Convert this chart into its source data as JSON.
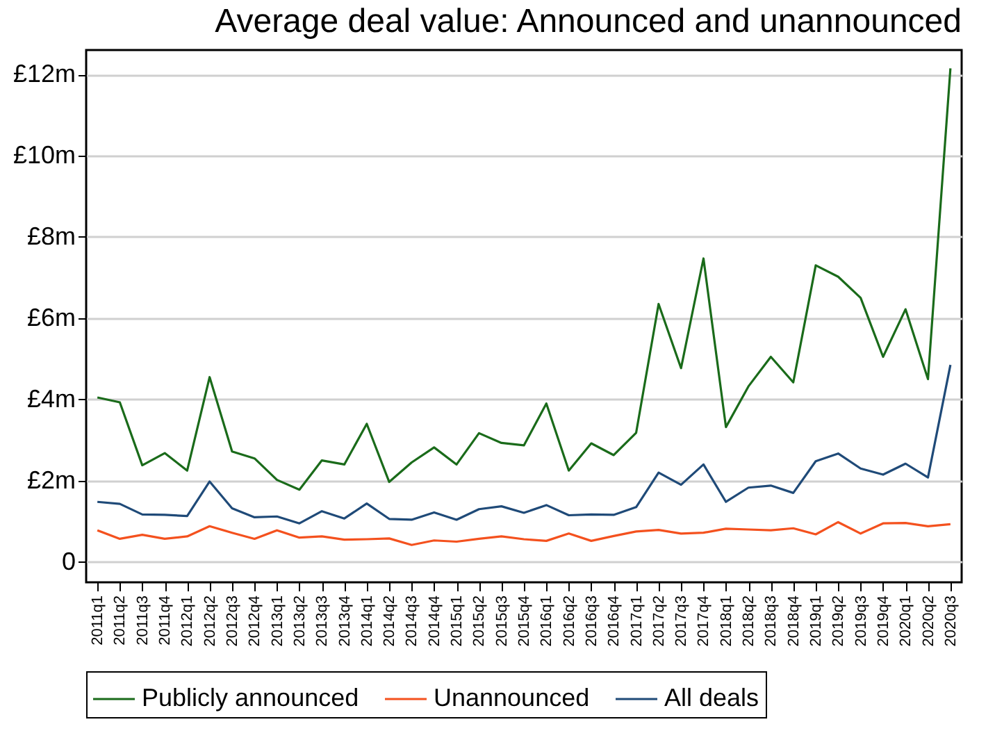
{
  "chart_data": {
    "type": "line",
    "title": "Average deal value: Announced and unannounced",
    "categories": [
      "2011q1",
      "2011q2",
      "2011q3",
      "2011q4",
      "2012q1",
      "2012q2",
      "2012q3",
      "2012q4",
      "2013q1",
      "2013q2",
      "2013q3",
      "2013q4",
      "2014q1",
      "2014q2",
      "2014q3",
      "2014q4",
      "2015q1",
      "2015q2",
      "2015q3",
      "2015q4",
      "2016q1",
      "2016q2",
      "2016q3",
      "2016q4",
      "2017q1",
      "2017q2",
      "2017q3",
      "2017q4",
      "2018q1",
      "2018q2",
      "2018q3",
      "2018q4",
      "2019q1",
      "2019q2",
      "2019q3",
      "2019q4",
      "2020q1",
      "2020q2",
      "2020q3"
    ],
    "series": [
      {
        "name": "Publicly announced",
        "color": "#1a6b1a",
        "values": [
          4.05,
          3.93,
          2.38,
          2.68,
          2.25,
          4.55,
          2.72,
          2.55,
          2.02,
          1.78,
          2.5,
          2.4,
          3.4,
          1.97,
          2.45,
          2.82,
          2.4,
          3.17,
          2.93,
          2.87,
          3.9,
          2.25,
          2.92,
          2.63,
          3.18,
          6.35,
          4.77,
          7.47,
          3.32,
          4.32,
          5.05,
          4.42,
          7.3,
          7.02,
          6.5,
          5.05,
          6.22,
          4.5,
          12.15
        ]
      },
      {
        "name": "Unannounced",
        "color": "#f4511e",
        "values": [
          0.78,
          0.57,
          0.67,
          0.57,
          0.63,
          0.88,
          0.72,
          0.57,
          0.78,
          0.6,
          0.63,
          0.55,
          0.56,
          0.58,
          0.42,
          0.53,
          0.5,
          0.57,
          0.63,
          0.56,
          0.52,
          0.7,
          0.52,
          0.64,
          0.75,
          0.79,
          0.7,
          0.72,
          0.82,
          0.8,
          0.78,
          0.83,
          0.68,
          0.98,
          0.7,
          0.95,
          0.96,
          0.88,
          0.93
        ]
      },
      {
        "name": "All deals",
        "color": "#1f4a78",
        "values": [
          1.48,
          1.43,
          1.17,
          1.16,
          1.13,
          1.98,
          1.32,
          1.1,
          1.12,
          0.95,
          1.25,
          1.07,
          1.44,
          1.06,
          1.04,
          1.22,
          1.04,
          1.3,
          1.37,
          1.21,
          1.4,
          1.15,
          1.17,
          1.16,
          1.35,
          2.2,
          1.9,
          2.4,
          1.48,
          1.83,
          1.88,
          1.7,
          2.48,
          2.67,
          2.3,
          2.15,
          2.42,
          2.08,
          4.85
        ]
      }
    ],
    "ylim": [
      -0.5,
      12.6
    ],
    "yticks": [
      0,
      {
        "value": 2,
        "label": "£2m"
      },
      {
        "value": 4,
        "label": "£4m"
      },
      {
        "value": 6,
        "label": "£6m"
      },
      {
        "value": 8,
        "label": "£8m"
      },
      {
        "value": 10,
        "label": "£10m"
      },
      {
        "value": 12,
        "label": "£12m"
      }
    ],
    "grid": "y",
    "legend": "bottom",
    "line_style": "solid"
  }
}
